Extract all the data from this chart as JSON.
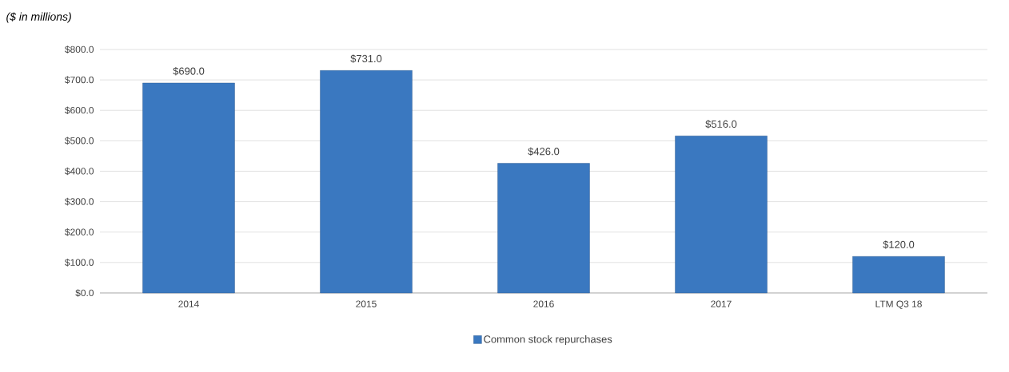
{
  "chart_data": {
    "type": "bar",
    "subtitle": "($ in millions)",
    "categories": [
      "2014",
      "2015",
      "2016",
      "2017",
      "LTM Q3 18"
    ],
    "series": [
      {
        "name": "Common stock repurchases",
        "color": "#3a78c0",
        "values": [
          690.0,
          731.0,
          426.0,
          516.0,
          120.0
        ],
        "value_labels": [
          "$690.0",
          "$731.0",
          "$426.0",
          "$516.0",
          "$120.0"
        ]
      }
    ],
    "ylim": [
      0,
      800
    ],
    "yticks": [
      {
        "value": 0,
        "label": "$0.0"
      },
      {
        "value": 100,
        "label": "$100.0"
      },
      {
        "value": 200,
        "label": "$200.0"
      },
      {
        "value": 300,
        "label": "$300.0"
      },
      {
        "value": 400,
        "label": "$400.0"
      },
      {
        "value": 500,
        "label": "$500.0"
      },
      {
        "value": 600,
        "label": "$600.0"
      },
      {
        "value": 700,
        "label": "$700.0"
      },
      {
        "value": 800,
        "label": "$800.0"
      }
    ],
    "grid": "y",
    "legend": "bottom"
  }
}
